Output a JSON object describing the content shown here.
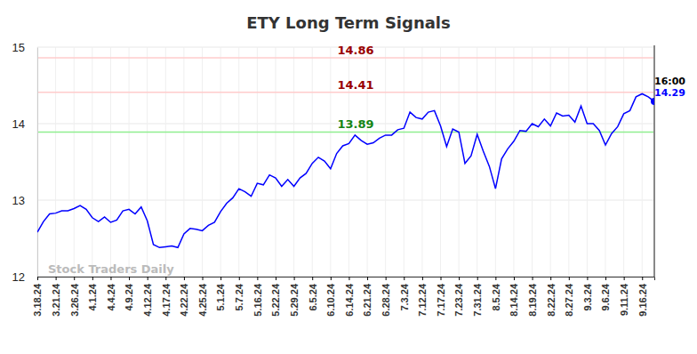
{
  "chart_data": {
    "type": "line",
    "title": "ETY Long Term Signals",
    "categories": [
      "3.18.24",
      null,
      null,
      "3.21.24",
      null,
      null,
      "3.26.24",
      null,
      null,
      "4.1.24",
      null,
      null,
      "4.4.24",
      null,
      null,
      "4.9.24",
      null,
      null,
      "4.12.24",
      null,
      null,
      "4.17.24",
      null,
      null,
      "4.22.24",
      null,
      null,
      "4.25.24",
      null,
      null,
      "5.1.24",
      null,
      null,
      "5.7.24",
      null,
      null,
      "5.16.24",
      null,
      null,
      "5.22.24",
      null,
      null,
      "5.29.24",
      null,
      null,
      "6.5.24",
      null,
      null,
      "6.10.24",
      null,
      null,
      "6.14.24",
      null,
      null,
      "6.21.24",
      null,
      null,
      "6.28.24",
      null,
      null,
      "7.3.24",
      null,
      null,
      "7.12.24",
      null,
      null,
      "7.17.24",
      null,
      null,
      "7.23.24",
      null,
      null,
      "7.31.24",
      null,
      null,
      "8.5.24",
      null,
      null,
      "8.14.24",
      null,
      null,
      "8.19.24",
      null,
      null,
      "8.22.24",
      null,
      null,
      "8.27.24",
      null,
      null,
      "9.3.24",
      null,
      null,
      "9.6.24",
      null,
      null,
      "9.11.24",
      null,
      null,
      "9.16.24",
      null,
      null
    ],
    "values": [
      12.58,
      12.72,
      12.82,
      12.83,
      12.86,
      12.86,
      12.89,
      12.93,
      12.88,
      12.77,
      12.72,
      12.78,
      12.71,
      12.74,
      12.86,
      12.88,
      12.82,
      12.91,
      12.73,
      12.42,
      12.38,
      12.39,
      12.4,
      12.38,
      12.56,
      12.63,
      12.62,
      12.6,
      12.67,
      12.71,
      12.85,
      12.96,
      13.03,
      13.15,
      13.11,
      13.05,
      13.22,
      13.2,
      13.33,
      13.29,
      13.18,
      13.27,
      13.18,
      13.29,
      13.35,
      13.48,
      13.56,
      13.51,
      13.41,
      13.61,
      13.71,
      13.74,
      13.85,
      13.78,
      13.73,
      13.75,
      13.81,
      13.85,
      13.85,
      13.92,
      13.94,
      14.15,
      14.08,
      14.06,
      14.15,
      14.17,
      13.97,
      13.7,
      13.93,
      13.89,
      13.48,
      13.58,
      13.86,
      13.64,
      13.44,
      13.15,
      13.54,
      13.67,
      13.77,
      13.91,
      13.9,
      14.0,
      13.96,
      14.06,
      13.97,
      14.14,
      14.1,
      14.11,
      14.02,
      14.23,
      14.0,
      14.0,
      13.91,
      13.72,
      13.87,
      13.96,
      14.13,
      14.17,
      14.35,
      14.39,
      14.35,
      14.29
    ],
    "color": "#0000ff",
    "ylim": [
      12,
      15
    ],
    "yticks": [
      12,
      13,
      14,
      15
    ],
    "grid": true,
    "reference_lines": [
      {
        "value": 14.86,
        "color": "#ffcccc"
      },
      {
        "value": 14.41,
        "color": "#ffcccc"
      },
      {
        "value": 13.89,
        "color": "#90ee90"
      }
    ],
    "annotations": [
      {
        "text": "16:00"
      }
    ],
    "watermark": "Stock Traders Daily"
  }
}
